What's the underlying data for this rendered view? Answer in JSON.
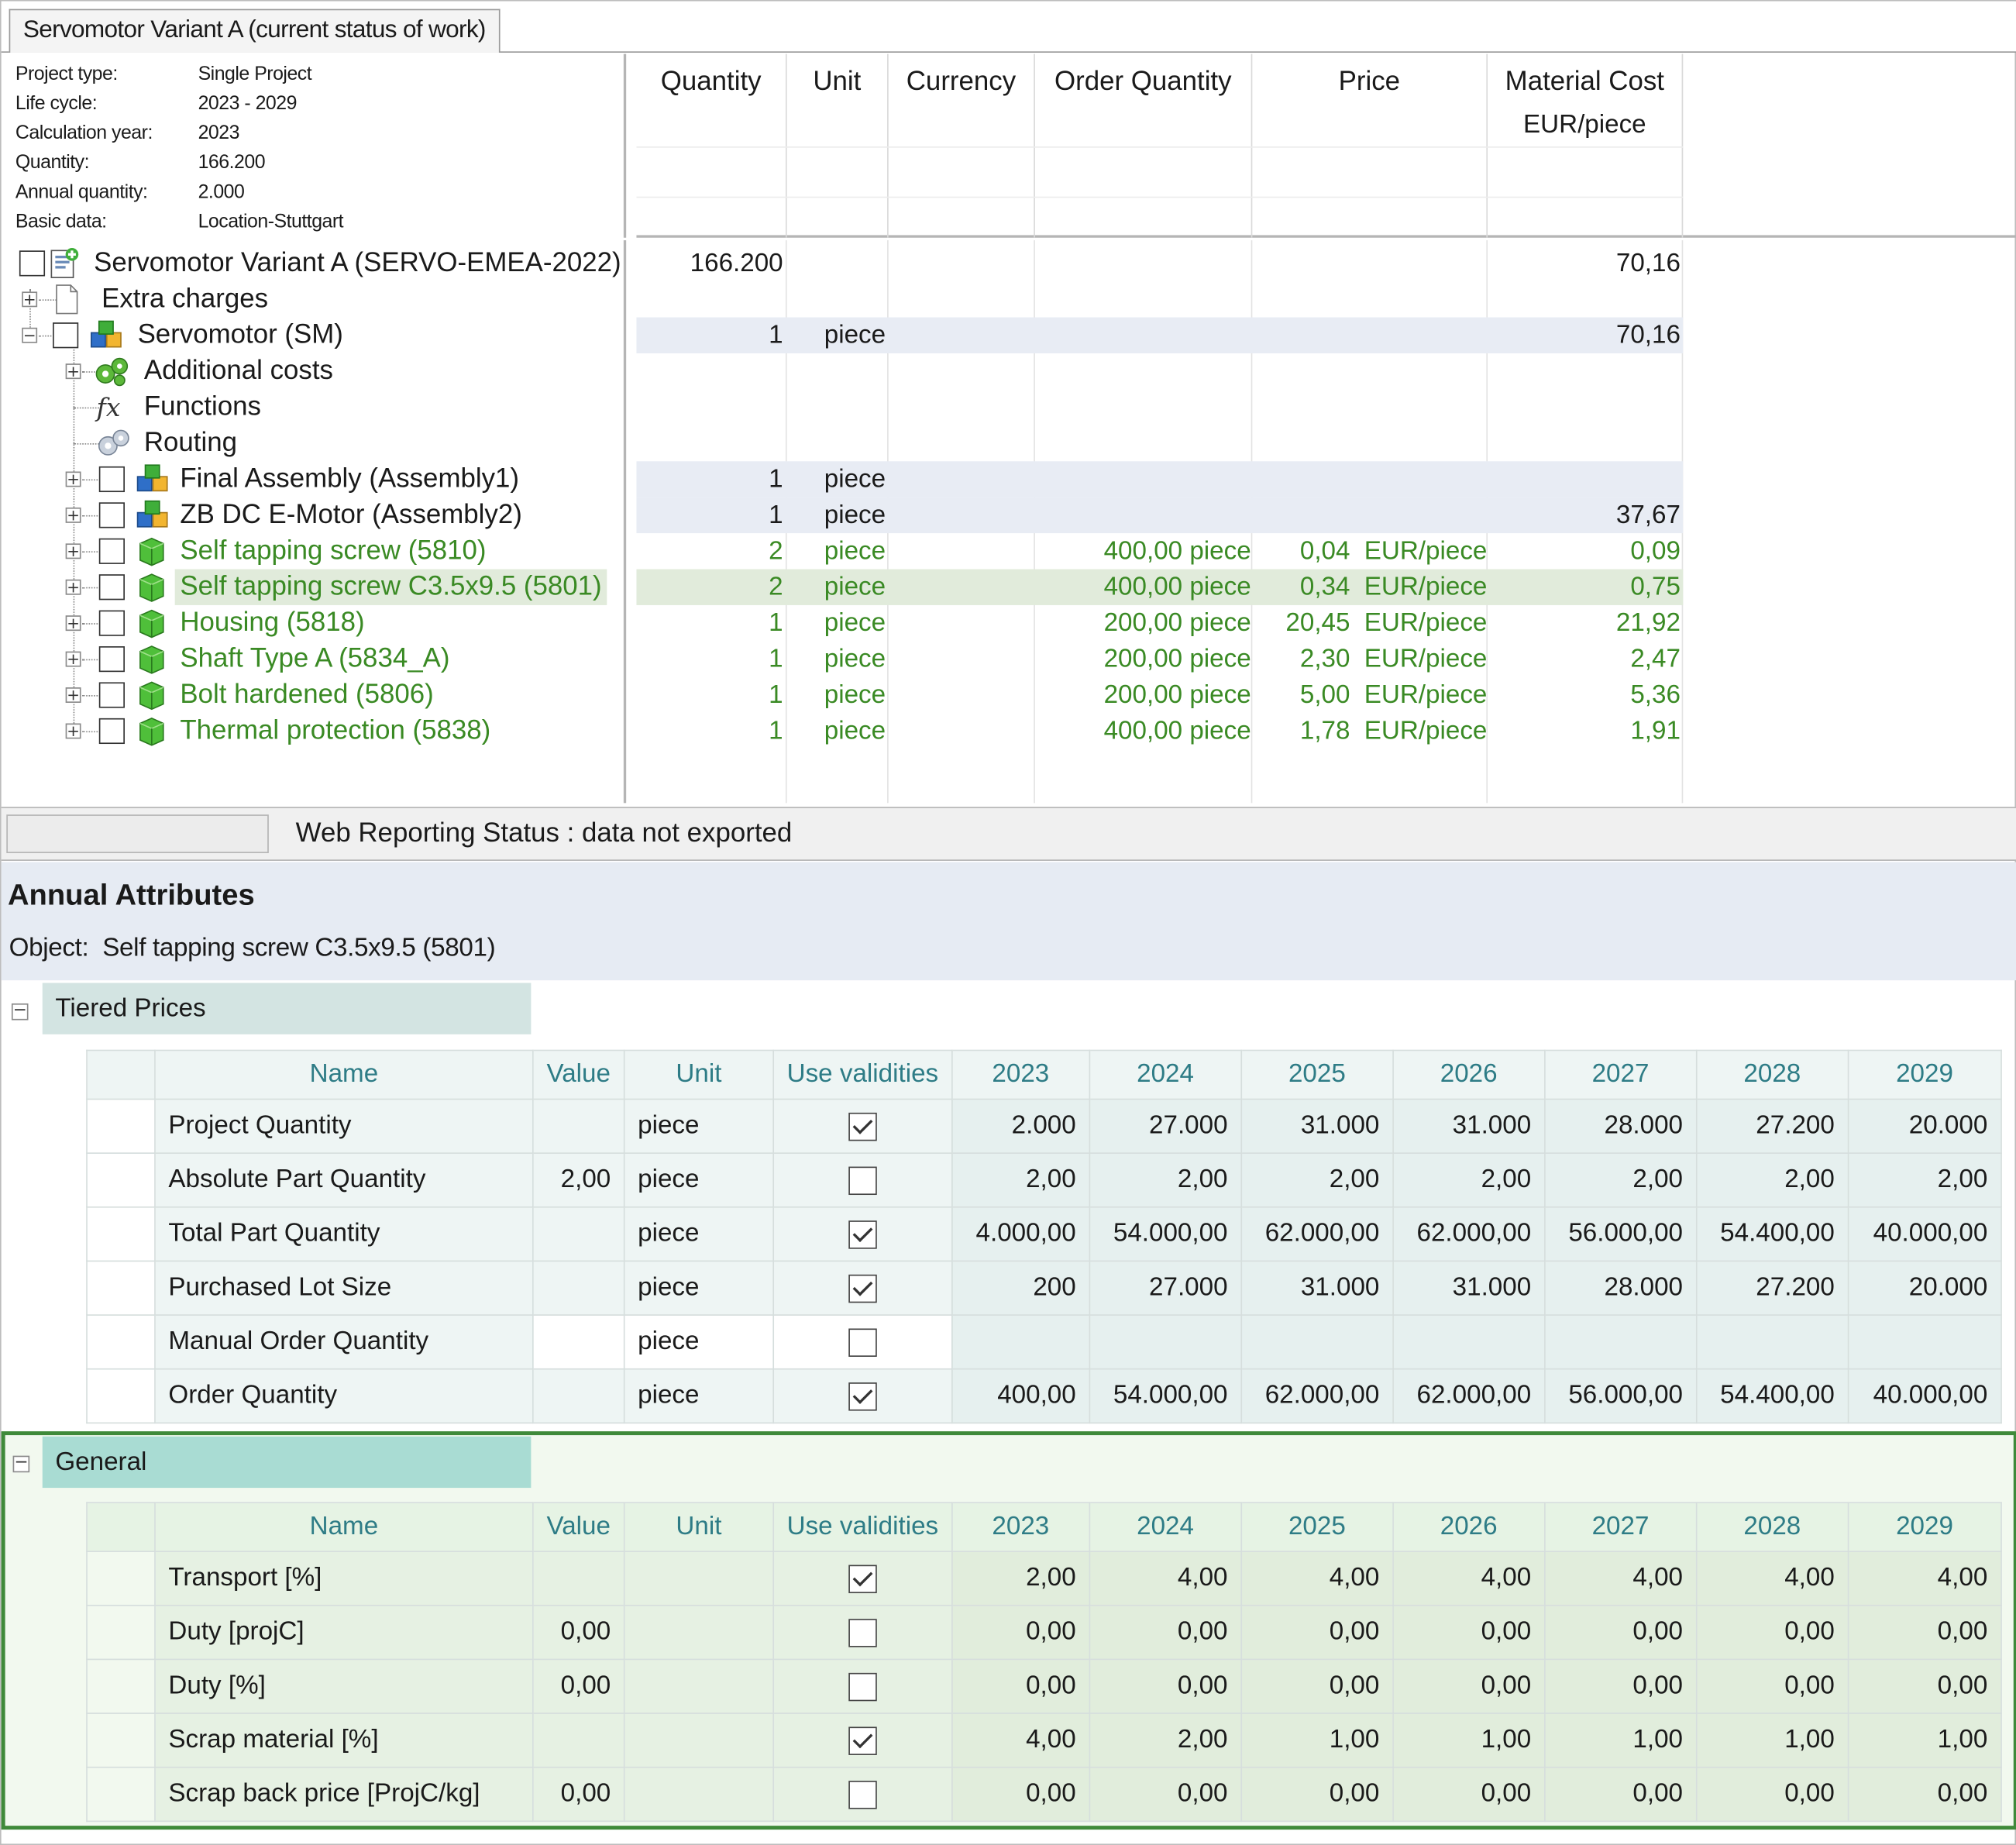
{
  "tab": {
    "title": "Servomotor Variant A (current status of work)"
  },
  "info": [
    {
      "label": "Project type:",
      "value": "Single Project"
    },
    {
      "label": "Life cycle:",
      "value": "2023 - 2029"
    },
    {
      "label": "Calculation year:",
      "value": "2023"
    },
    {
      "label": "Quantity:",
      "value": "166.200"
    },
    {
      "label": "Annual quantity:",
      "value": "2.000"
    },
    {
      "label": "Basic data:",
      "value": "Location-Stuttgart"
    }
  ],
  "grid_headers": {
    "quantity": "Quantity",
    "unit": "Unit",
    "currency": "Currency",
    "order_quantity": "Order Quantity",
    "price": "Price",
    "material_cost": "Material Cost",
    "material_cost_unit": "EUR/piece"
  },
  "tree": [
    {
      "label": "Servomotor Variant A (SERVO-EMEA-2022)",
      "qty": "166.200",
      "unit": "",
      "order": "",
      "price": "",
      "price_unit": "",
      "cost": "70,16"
    },
    {
      "label": "Extra charges",
      "qty": "",
      "unit": "",
      "order": "",
      "price": "",
      "price_unit": "",
      "cost": ""
    },
    {
      "label": "Servomotor (SM)",
      "qty": "1",
      "unit": "piece",
      "order": "",
      "price": "",
      "price_unit": "",
      "cost": "70,16"
    },
    {
      "label": "Additional costs",
      "qty": "",
      "unit": "",
      "order": "",
      "price": "",
      "price_unit": "",
      "cost": ""
    },
    {
      "label": "Functions",
      "qty": "",
      "unit": "",
      "order": "",
      "price": "",
      "price_unit": "",
      "cost": ""
    },
    {
      "label": "Routing",
      "qty": "",
      "unit": "",
      "order": "",
      "price": "",
      "price_unit": "",
      "cost": ""
    },
    {
      "label": "Final Assembly (Assembly1)",
      "qty": "1",
      "unit": "piece",
      "order": "",
      "price": "",
      "price_unit": "",
      "cost": ""
    },
    {
      "label": "ZB DC E-Motor (Assembly2)",
      "qty": "1",
      "unit": "piece",
      "order": "",
      "price": "",
      "price_unit": "",
      "cost": "37,67"
    },
    {
      "label": "Self tapping screw (5810)",
      "qty": "2",
      "unit": "piece",
      "order": "400,00 piece",
      "price": "0,04",
      "price_unit": "EUR/piece",
      "cost": "0,09"
    },
    {
      "label": "Self tapping screw C3.5x9.5 (5801)",
      "qty": "2",
      "unit": "piece",
      "order": "400,00 piece",
      "price": "0,34",
      "price_unit": "EUR/piece",
      "cost": "0,75"
    },
    {
      "label": "Housing (5818)",
      "qty": "1",
      "unit": "piece",
      "order": "200,00 piece",
      "price": "20,45",
      "price_unit": "EUR/piece",
      "cost": "21,92"
    },
    {
      "label": "Shaft Type A (5834_A)",
      "qty": "1",
      "unit": "piece",
      "order": "200,00 piece",
      "price": "2,30",
      "price_unit": "EUR/piece",
      "cost": "2,47"
    },
    {
      "label": "Bolt hardened (5806)",
      "qty": "1",
      "unit": "piece",
      "order": "200,00 piece",
      "price": "5,00",
      "price_unit": "EUR/piece",
      "cost": "5,36"
    },
    {
      "label": "Thermal protection (5838)",
      "qty": "1",
      "unit": "piece",
      "order": "400,00 piece",
      "price": "1,78",
      "price_unit": "EUR/piece",
      "cost": "1,91"
    }
  ],
  "status": {
    "text": "Web Reporting Status : data not exported"
  },
  "annual": {
    "title": "Annual Attributes",
    "object_label": "Object:",
    "object_value": "Self tapping screw C3.5x9.5 (5801)"
  },
  "columns": {
    "name": "Name",
    "value": "Value",
    "unit": "Unit",
    "use_validities": "Use validities",
    "years": [
      "2023",
      "2024",
      "2025",
      "2026",
      "2027",
      "2028",
      "2029"
    ]
  },
  "tiered": {
    "title": "Tiered Prices",
    "rows": [
      {
        "name": "Project Quantity",
        "value": "",
        "unit": "piece",
        "checked": true,
        "years": [
          "2.000",
          "27.000",
          "31.000",
          "31.000",
          "28.000",
          "27.200",
          "20.000"
        ]
      },
      {
        "name": "Absolute Part Quantity",
        "value": "2,00",
        "unit": "piece",
        "checked": false,
        "years": [
          "2,00",
          "2,00",
          "2,00",
          "2,00",
          "2,00",
          "2,00",
          "2,00"
        ]
      },
      {
        "name": "Total Part Quantity",
        "value": "",
        "unit": "piece",
        "checked": true,
        "years": [
          "4.000,00",
          "54.000,00",
          "62.000,00",
          "62.000,00",
          "56.000,00",
          "54.400,00",
          "40.000,00"
        ]
      },
      {
        "name": "Purchased Lot Size",
        "value": "",
        "unit": "piece",
        "checked": true,
        "years": [
          "200",
          "27.000",
          "31.000",
          "31.000",
          "28.000",
          "27.200",
          "20.000"
        ]
      },
      {
        "name": "Manual Order Quantity",
        "value": "",
        "unit": "piece",
        "checked": false,
        "years": [
          "",
          "",
          "",
          "",
          "",
          "",
          ""
        ]
      },
      {
        "name": "Order Quantity",
        "value": "",
        "unit": "piece",
        "checked": true,
        "years": [
          "400,00",
          "54.000,00",
          "62.000,00",
          "62.000,00",
          "56.000,00",
          "54.400,00",
          "40.000,00"
        ]
      }
    ]
  },
  "general": {
    "title": "General",
    "rows": [
      {
        "name": "Transport [%]",
        "value": "",
        "unit": "",
        "checked": true,
        "years": [
          "2,00",
          "4,00",
          "4,00",
          "4,00",
          "4,00",
          "4,00",
          "4,00"
        ]
      },
      {
        "name": "Duty [projC]",
        "value": "0,00",
        "unit": "",
        "checked": false,
        "years": [
          "0,00",
          "0,00",
          "0,00",
          "0,00",
          "0,00",
          "0,00",
          "0,00"
        ]
      },
      {
        "name": "Duty [%]",
        "value": "0,00",
        "unit": "",
        "checked": false,
        "years": [
          "0,00",
          "0,00",
          "0,00",
          "0,00",
          "0,00",
          "0,00",
          "0,00"
        ]
      },
      {
        "name": "Scrap material [%]",
        "value": "",
        "unit": "",
        "checked": true,
        "years": [
          "4,00",
          "2,00",
          "1,00",
          "1,00",
          "1,00",
          "1,00",
          "1,00"
        ]
      },
      {
        "name": "Scrap back price  [ProjC/kg]",
        "value": "0,00",
        "unit": "",
        "checked": false,
        "years": [
          "0,00",
          "0,00",
          "0,00",
          "0,00",
          "0,00",
          "0,00",
          "0,00"
        ]
      }
    ]
  },
  "colors": {
    "accent_green": "#3a8a24",
    "header_teal": "#2e7c86",
    "section_bg": "#d3e4e2",
    "general_bg": "#a9dcd3",
    "general_border": "#3f8a3a",
    "selected_row": "#e1ebdb",
    "assembly_row": "#e8ecf4"
  },
  "icons": {
    "root": "project-icon",
    "extra": "document-icon",
    "assembly": "assembly-icon",
    "costs": "gears-icon",
    "functions": "fx-icon",
    "routing": "routing-icon",
    "part": "green-cube-icon"
  }
}
